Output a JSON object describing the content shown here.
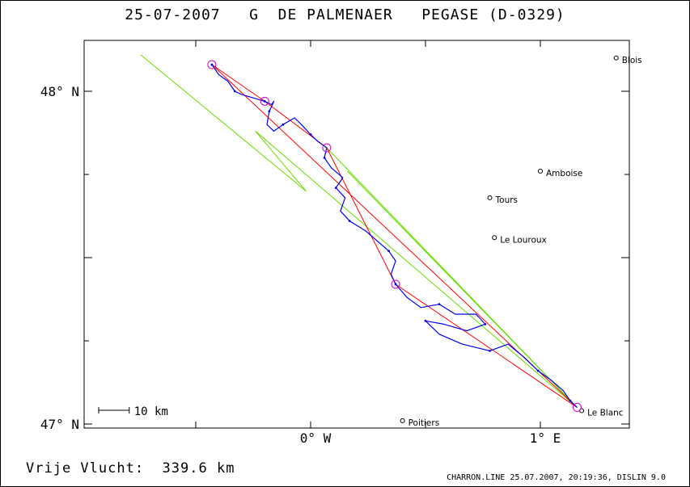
{
  "header": {
    "title": "25-07-2007   G  DE PALMENAER   PEGASE (D-0329)"
  },
  "axes": {
    "lat_labels": [
      {
        "text": "48° N",
        "lat": 48
      },
      {
        "text": "47° N",
        "lat": 47
      }
    ],
    "lon_labels": [
      {
        "text": "0° W",
        "lon": 0
      },
      {
        "text": "1° E",
        "lon": 1
      }
    ]
  },
  "scale_bar": {
    "label": "10 km",
    "km": 10
  },
  "towns": [
    {
      "name": "Blois",
      "lon": 1.33,
      "lat": 48.1
    },
    {
      "name": "Amboise",
      "lon": 1.0,
      "lat": 47.76
    },
    {
      "name": "Tours",
      "lon": 0.78,
      "lat": 47.68
    },
    {
      "name": "Le Louroux",
      "lon": 0.8,
      "lat": 47.56
    },
    {
      "name": "Le Blanc",
      "lon": 1.18,
      "lat": 47.04
    },
    {
      "name": "Poitiers",
      "lon": 0.4,
      "lat": 47.01
    }
  ],
  "turnpoints": [
    {
      "lon": -0.43,
      "lat": 48.08
    },
    {
      "lon": -0.2,
      "lat": 47.97
    },
    {
      "lon": 0.07,
      "lat": 47.83
    },
    {
      "lon": 0.37,
      "lat": 47.42
    },
    {
      "lon": 1.16,
      "lat": 47.05
    }
  ],
  "declared_task": [
    {
      "lon": -0.74,
      "lat": 48.11
    },
    {
      "lon": -0.02,
      "lat": 47.7
    },
    {
      "lon": -0.24,
      "lat": 47.88
    },
    {
      "lon": 1.16,
      "lat": 47.05
    },
    {
      "lon": 0.16,
      "lat": 47.76
    }
  ],
  "track": [
    [
      -0.43,
      48.08
    ],
    [
      -0.4,
      48.05
    ],
    [
      -0.36,
      48.03
    ],
    [
      -0.33,
      48.0
    ],
    [
      -0.3,
      47.99
    ],
    [
      -0.25,
      47.98
    ],
    [
      -0.2,
      47.97
    ],
    [
      -0.17,
      47.96
    ],
    [
      -0.16,
      47.97
    ],
    [
      -0.18,
      47.94
    ],
    [
      -0.19,
      47.9
    ],
    [
      -0.16,
      47.88
    ],
    [
      -0.12,
      47.9
    ],
    [
      -0.07,
      47.92
    ],
    [
      -0.04,
      47.9
    ],
    [
      0.0,
      47.87
    ],
    [
      0.03,
      47.85
    ],
    [
      0.07,
      47.83
    ],
    [
      0.06,
      47.8
    ],
    [
      0.09,
      47.77
    ],
    [
      0.14,
      47.74
    ],
    [
      0.11,
      47.71
    ],
    [
      0.15,
      47.68
    ],
    [
      0.13,
      47.64
    ],
    [
      0.17,
      47.61
    ],
    [
      0.24,
      47.58
    ],
    [
      0.29,
      47.55
    ],
    [
      0.34,
      47.52
    ],
    [
      0.37,
      47.49
    ],
    [
      0.35,
      47.45
    ],
    [
      0.37,
      47.42
    ],
    [
      0.42,
      47.38
    ],
    [
      0.48,
      47.35
    ],
    [
      0.56,
      47.36
    ],
    [
      0.63,
      47.33
    ],
    [
      0.72,
      47.33
    ],
    [
      0.76,
      47.3
    ],
    [
      0.68,
      47.28
    ],
    [
      0.58,
      47.3
    ],
    [
      0.5,
      47.31
    ],
    [
      0.56,
      47.27
    ],
    [
      0.66,
      47.24
    ],
    [
      0.78,
      47.22
    ],
    [
      0.86,
      47.24
    ],
    [
      0.93,
      47.2
    ],
    [
      0.99,
      47.16
    ],
    [
      1.05,
      47.13
    ],
    [
      1.1,
      47.1
    ],
    [
      1.13,
      47.07
    ],
    [
      1.16,
      47.05
    ]
  ],
  "optimized_route": [
    [
      -0.43,
      48.08
    ],
    [
      -0.2,
      47.97
    ],
    [
      0.07,
      47.83
    ],
    [
      0.37,
      47.42
    ],
    [
      1.16,
      47.05
    ],
    [
      -0.43,
      48.08
    ]
  ],
  "colors": {
    "track": "#0000ee",
    "optimized_route": "#ff0000",
    "declared_task": "#66dd00",
    "turnpoint": "#cc00cc",
    "frame": "#000000"
  },
  "summary": {
    "label": "Vrije Vlucht:",
    "value": "339.6 km"
  },
  "footer": {
    "text": "CHARRON.LINE 25.07.2007, 20:19:36, DISLIN 9.0"
  }
}
